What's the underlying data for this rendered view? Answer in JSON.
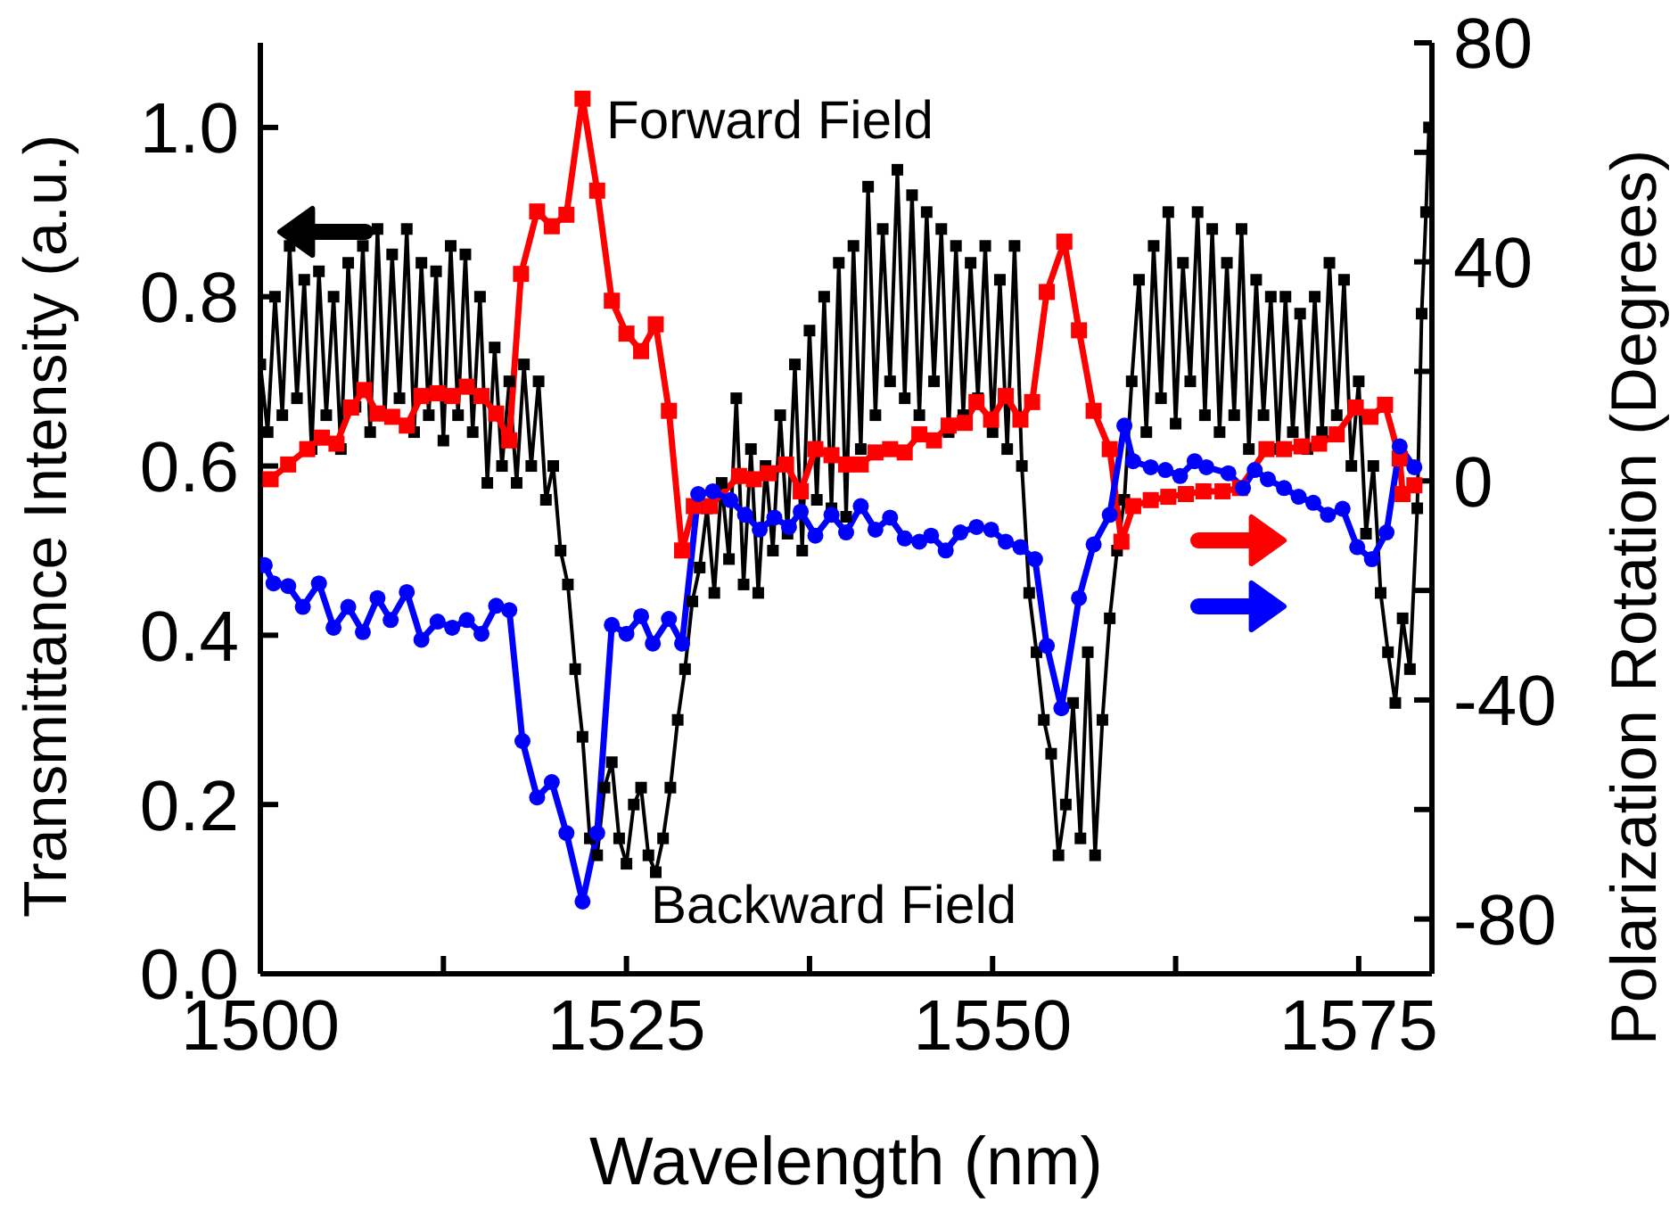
{
  "chart_data": {
    "type": "line",
    "xlabel": "Wavelength (nm)",
    "ylabel": "Transmittance Intensity (a.u.)",
    "y2label": "Polarization Rotation (Degrees)",
    "xlim": [
      1500,
      1580
    ],
    "xticks": [
      1500,
      {
        "value": 1512.5,
        "label": null
      },
      1525,
      {
        "value": 1537.5,
        "label": null
      },
      1550,
      {
        "value": 1562.5,
        "label": null
      },
      1575
    ],
    "ylim": [
      0,
      1.1
    ],
    "yticks": [
      {
        "value": 0,
        "label": "0.0"
      },
      {
        "value": 0.2,
        "label": "0.2"
      },
      {
        "value": 0.4,
        "label": "0.4"
      },
      {
        "value": 0.6,
        "label": "0.6"
      },
      {
        "value": 0.8,
        "label": "0.8"
      },
      {
        "value": 1.0,
        "label": "1.0"
      }
    ],
    "y2lim": [
      -90,
      80
    ],
    "y2ticks": [
      -80,
      {
        "value": -60,
        "label": null
      },
      -40,
      {
        "value": -20,
        "label": null
      },
      0,
      {
        "value": 20,
        "label": null
      },
      40,
      {
        "value": 60,
        "label": null
      },
      80
    ],
    "line_style": "solid",
    "series": [
      {
        "color": "#000000",
        "marker": "square",
        "x": [
          1500.0,
          1500.5,
          1501.0,
          1501.5,
          1502.0,
          1502.5,
          1503.0,
          1503.5,
          1504.0,
          1504.5,
          1505.0,
          1505.5,
          1506.0,
          1506.5,
          1507.0,
          1507.5,
          1508.0,
          1508.5,
          1509.0,
          1509.5,
          1510.0,
          1510.5,
          1511.0,
          1511.5,
          1512.0,
          1512.5,
          1513.0,
          1513.5,
          1514.0,
          1514.5,
          1515.0,
          1515.5,
          1516.0,
          1516.5,
          1517.0,
          1517.5,
          1518.0,
          1518.5,
          1519.0,
          1519.5,
          1520.0,
          1520.5,
          1521.0,
          1521.5,
          1522.0,
          1522.5,
          1523.0,
          1523.5,
          1524.0,
          1524.5,
          1525.0,
          1525.5,
          1526.0,
          1526.5,
          1527.0,
          1527.5,
          1528.0,
          1528.5,
          1529.0,
          1529.5,
          1530.0,
          1530.5,
          1531.0,
          1531.5,
          1532.0,
          1532.5,
          1533.0,
          1533.5,
          1534.0,
          1534.5,
          1535.0,
          1535.5,
          1536.0,
          1536.5,
          1537.0,
          1537.5,
          1538.0,
          1538.5,
          1539.0,
          1539.5,
          1540.0,
          1540.5,
          1541.0,
          1541.5,
          1542.0,
          1542.5,
          1543.0,
          1543.5,
          1544.0,
          1544.5,
          1545.0,
          1545.5,
          1546.0,
          1546.5,
          1547.0,
          1547.5,
          1548.0,
          1548.5,
          1549.0,
          1549.5,
          1550.0,
          1550.5,
          1551.0,
          1551.5,
          1552.0,
          1552.5,
          1553.0,
          1553.5,
          1554.0,
          1554.5,
          1555.0,
          1555.5,
          1556.0,
          1556.5,
          1557.0,
          1557.5,
          1558.0,
          1558.5,
          1559.0,
          1559.5,
          1560.0,
          1560.5,
          1561.0,
          1561.5,
          1562.0,
          1562.5,
          1563.0,
          1563.5,
          1564.0,
          1564.5,
          1565.0,
          1565.5,
          1566.0,
          1566.5,
          1567.0,
          1567.5,
          1568.0,
          1568.5,
          1569.0,
          1569.5,
          1570.0,
          1570.5,
          1571.0,
          1571.5,
          1572.0,
          1572.5,
          1573.0,
          1573.5,
          1574.0,
          1574.5,
          1575.0,
          1575.5,
          1576.0,
          1576.5,
          1577.0,
          1577.5,
          1578.0,
          1578.5,
          1579.0,
          1579.3,
          1579.6,
          1579.8
        ],
        "values": [
          0.72,
          0.64,
          0.8,
          0.66,
          0.86,
          0.68,
          0.82,
          0.62,
          0.83,
          0.66,
          0.8,
          0.62,
          0.84,
          0.67,
          0.86,
          0.64,
          0.88,
          0.66,
          0.85,
          0.68,
          0.88,
          0.64,
          0.84,
          0.66,
          0.83,
          0.63,
          0.86,
          0.66,
          0.85,
          0.64,
          0.8,
          0.58,
          0.74,
          0.6,
          0.7,
          0.58,
          0.72,
          0.6,
          0.7,
          0.56,
          0.6,
          0.5,
          0.46,
          0.36,
          0.28,
          0.16,
          0.14,
          0.22,
          0.25,
          0.16,
          0.13,
          0.2,
          0.22,
          0.14,
          0.12,
          0.16,
          0.22,
          0.3,
          0.36,
          0.44,
          0.48,
          0.55,
          0.45,
          0.58,
          0.49,
          0.68,
          0.46,
          0.62,
          0.45,
          0.6,
          0.5,
          0.66,
          0.52,
          0.72,
          0.5,
          0.76,
          0.56,
          0.8,
          0.55,
          0.84,
          0.54,
          0.86,
          0.62,
          0.93,
          0.66,
          0.88,
          0.7,
          0.95,
          0.68,
          0.92,
          0.66,
          0.9,
          0.7,
          0.88,
          0.64,
          0.86,
          0.66,
          0.84,
          0.68,
          0.86,
          0.64,
          0.82,
          0.62,
          0.86,
          0.6,
          0.45,
          0.38,
          0.3,
          0.26,
          0.14,
          0.2,
          0.32,
          0.16,
          0.38,
          0.14,
          0.3,
          0.42,
          0.5,
          0.56,
          0.7,
          0.82,
          0.64,
          0.86,
          0.68,
          0.9,
          0.65,
          0.84,
          0.7,
          0.9,
          0.66,
          0.88,
          0.64,
          0.84,
          0.66,
          0.88,
          0.62,
          0.82,
          0.66,
          0.8,
          0.62,
          0.8,
          0.64,
          0.78,
          0.62,
          0.8,
          0.64,
          0.84,
          0.66,
          0.82,
          0.6,
          0.7,
          0.52,
          0.6,
          0.45,
          0.38,
          0.32,
          0.42,
          0.36,
          0.55,
          0.78,
          0.9,
          1.0
        ]
      },
      {
        "name": "Forward Field",
        "color": "#ff0000",
        "marker": "square",
        "axis": "y2",
        "x": [
          1500.7,
          1501.9,
          1503.2,
          1504.2,
          1505.2,
          1506.2,
          1507.1,
          1508.0,
          1509.0,
          1510.0,
          1511.0,
          1512.1,
          1513.1,
          1514.1,
          1515.1,
          1516.1,
          1517.0,
          1517.8,
          1518.9,
          1519.9,
          1520.9,
          1522.0,
          1523.0,
          1524.0,
          1525.0,
          1526.0,
          1527.0,
          1527.9,
          1528.8,
          1529.6,
          1530.7,
          1532.7,
          1533.7,
          1534.7,
          1535.9,
          1536.9,
          1537.9,
          1539.0,
          1540.0,
          1541.0,
          1542.0,
          1543.0,
          1544.0,
          1545.0,
          1546.0,
          1547.0,
          1548.1,
          1548.9,
          1549.9,
          1550.9,
          1551.9,
          1552.7,
          1553.7,
          1554.9,
          1555.9,
          1556.9,
          1558.0,
          1558.8,
          1559.6,
          1560.8,
          1562.0,
          1563.2,
          1564.4,
          1565.7,
          1566.9,
          1568.7,
          1569.9,
          1571.1,
          1572.3,
          1573.5,
          1574.8,
          1575.8,
          1576.8,
          1577.8,
          1578.0,
          1578.8
        ],
        "values": [
          0.3,
          3,
          5.8,
          7.9,
          6.8,
          13.4,
          16.6,
          12.3,
          11.7,
          10.1,
          15.5,
          16,
          15.5,
          17.2,
          15.5,
          12.3,
          7.4,
          37.8,
          49.2,
          46.5,
          48.6,
          69.8,
          53,
          32.9,
          26.9,
          23.7,
          28.6,
          12.8,
          -12.7,
          -4.6,
          -4.6,
          0.9,
          0.3,
          1.4,
          3,
          -1.9,
          5.8,
          4.7,
          3,
          3,
          5.2,
          5.8,
          5.2,
          8.5,
          7.4,
          10.1,
          10.6,
          14.4,
          11.2,
          15.5,
          11.2,
          14.4,
          34.5,
          43.7,
          27.5,
          12.8,
          5.8,
          -11.1,
          -4.6,
          -3.5,
          -2.9,
          -2.4,
          -1.9,
          -1.9,
          -1.3,
          5.8,
          5.8,
          6.3,
          6.8,
          8.5,
          13.4,
          11.7,
          13.9,
          4.1,
          -2.4,
          -0.8
        ]
      },
      {
        "name": "Backward Field",
        "color": "#0000ff",
        "marker": "circle",
        "axis": "y2",
        "x": [
          1500.3,
          1500.9,
          1501.9,
          1502.9,
          1504.0,
          1505.0,
          1506.0,
          1507.0,
          1508.0,
          1508.9,
          1510.0,
          1511.0,
          1512.1,
          1513.1,
          1514.1,
          1515.1,
          1516.1,
          1517.0,
          1517.9,
          1518.9,
          1519.9,
          1520.9,
          1522.0,
          1523.0,
          1524.0,
          1525.0,
          1526.0,
          1526.8,
          1527.9,
          1528.8,
          1529.9,
          1530.9,
          1532.1,
          1533.1,
          1534.1,
          1535.1,
          1536.1,
          1536.9,
          1537.9,
          1539.0,
          1540.0,
          1541.0,
          1542.0,
          1543.0,
          1544.0,
          1545.0,
          1545.8,
          1546.8,
          1547.8,
          1548.9,
          1549.9,
          1550.9,
          1551.9,
          1552.9,
          1553.7,
          1554.7,
          1555.9,
          1556.9,
          1558.0,
          1559.0,
          1559.6,
          1560.8,
          1561.8,
          1562.8,
          1563.8,
          1564.6,
          1566.1,
          1567.1,
          1567.9,
          1568.8,
          1569.9,
          1570.9,
          1571.9,
          1572.9,
          1573.9,
          1574.9,
          1575.9,
          1576.9,
          1577.8,
          1578.8
        ],
        "values": [
          -15.4,
          -18.7,
          -19.2,
          -23,
          -18.7,
          -26.8,
          -23,
          -27.6,
          -21.4,
          -25.4,
          -20.3,
          -29,
          -25.7,
          -26.8,
          -25.4,
          -27.9,
          -22.8,
          -23.6,
          -47.5,
          -57.8,
          -55,
          -64.3,
          -76.8,
          -64.3,
          -26.3,
          -27.9,
          -24.7,
          -29.7,
          -25.2,
          -29.7,
          -2.4,
          -1.9,
          -3.5,
          -6.2,
          -8.9,
          -6.7,
          -8.4,
          -5.6,
          -10,
          -6.2,
          -9.4,
          -4.6,
          -8.9,
          -6.7,
          -10.5,
          -11.1,
          -10,
          -12.7,
          -9.4,
          -8.4,
          -8.9,
          -11.1,
          -12.1,
          -14.3,
          -30.1,
          -41.5,
          -21.4,
          -11.6,
          -6.2,
          10.1,
          3.6,
          2.5,
          2,
          0.9,
          3.6,
          2.5,
          1.4,
          -1.3,
          2,
          0.3,
          -1.3,
          -2.9,
          -4,
          -6.2,
          -5.1,
          -12.1,
          -14.3,
          -9.4,
          6.3,
          2.5
        ]
      }
    ]
  }
}
